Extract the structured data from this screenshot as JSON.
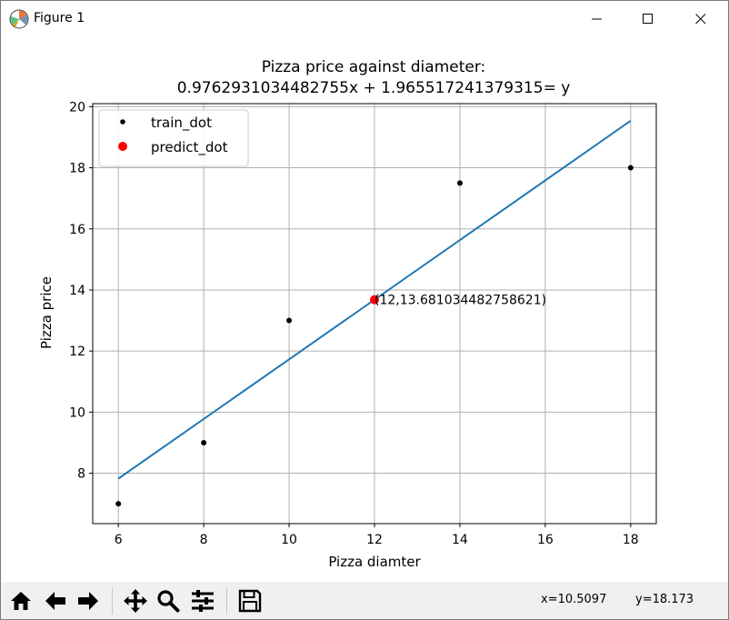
{
  "window": {
    "title": "Figure 1",
    "controls": {
      "minimize": "minimize",
      "maximize": "maximize",
      "close": "close"
    }
  },
  "chart_data": {
    "type": "scatter",
    "title_line1": "Pizza price against diameter:",
    "title_line2": "0.9762931034482755x + 1.965517241379315= y",
    "xlabel": "Pizza diamter",
    "ylabel": "Pizza price",
    "xlim": [
      5.4,
      18.6
    ],
    "ylim": [
      6.35,
      20.1
    ],
    "xticks": [
      6,
      8,
      10,
      12,
      14,
      16,
      18
    ],
    "yticks": [
      8,
      10,
      12,
      14,
      16,
      18,
      20
    ],
    "grid": true,
    "legend_position": "top-left",
    "series": [
      {
        "name": "train_dot",
        "color": "#000000",
        "marker": "dot",
        "x": [
          6,
          8,
          10,
          14,
          18
        ],
        "y": [
          7,
          9,
          13,
          17.5,
          18
        ]
      },
      {
        "name": "predict_dot",
        "color": "#ff0000",
        "marker": "circle",
        "x": [
          12
        ],
        "y": [
          13.681034482758621
        ]
      }
    ],
    "fit_line": {
      "color": "#1f77b4",
      "slope": 0.9762931034482755,
      "intercept": 1.965517241379315,
      "x": [
        6,
        18
      ]
    },
    "annotation": {
      "text": "(12,13.681034482758621)",
      "x": 12,
      "y": 13.681034482758621
    }
  },
  "toolbar": {
    "buttons": [
      "home-icon",
      "back-icon",
      "forward-icon",
      "pan-icon",
      "zoom-icon",
      "configure-icon",
      "save-icon"
    ],
    "status_x": "x=10.5097",
    "status_y": "y=18.173"
  }
}
